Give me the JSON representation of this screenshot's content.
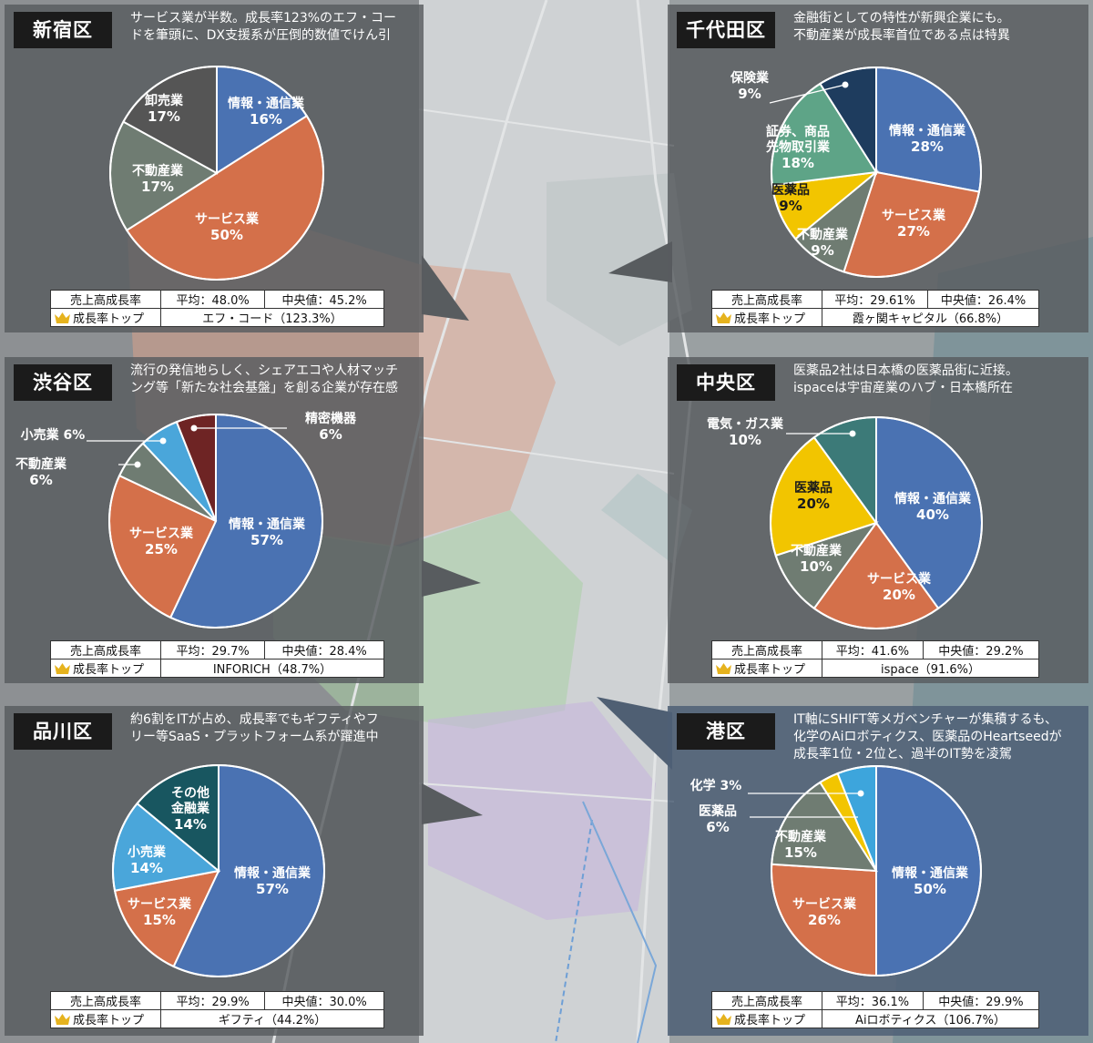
{
  "colors": {
    "it": "#4a72b2",
    "service": "#d4704a",
    "realestate": "#6f7c72",
    "wholesale": "#555555",
    "insurance": "#1e3c5e",
    "securities": "#5ea487",
    "pharma": "#f2c500",
    "retail": "#4aa6da",
    "precision": "#6e2424",
    "electric": "#3c7a78",
    "otherfin": "#185660",
    "chemistry": "#f2c500",
    "minato_pharma": "#3da5dc"
  },
  "labels": {
    "stat_label": "売上高成長率",
    "top_label": "成長率トップ"
  },
  "panels": [
    {
      "key": "shinjuku",
      "ward": "新宿区",
      "desc": [
        "サービス業が半数。成長率123%のエフ・コー",
        "ドを筆頭に、DX支援系が圧倒的数値でけん引"
      ],
      "avg": "平均：48.0%",
      "median": "中央値：45.2%",
      "top": "エフ・コード（123.3%）",
      "slices": [
        {
          "name": "情報・通信業",
          "value": 16,
          "pct": "16%",
          "color": "it"
        },
        {
          "name": "サービス業",
          "value": 50,
          "pct": "50%",
          "color": "service"
        },
        {
          "name": "不動産業",
          "value": 17,
          "pct": "17%",
          "color": "realestate"
        },
        {
          "name": "卸売業",
          "value": 17,
          "pct": "17%",
          "color": "wholesale"
        }
      ]
    },
    {
      "key": "chiyoda",
      "ward": "千代田区",
      "desc": [
        "金融街としての特性が新興企業にも。",
        "不動産業が成長率首位である点は特異"
      ],
      "avg": "平均：29.61%",
      "median": "中央値：26.4%",
      "top": "霞ヶ関キャピタル（66.8%）",
      "slices": [
        {
          "name": "情報・通信業",
          "value": 28,
          "pct": "28%",
          "color": "it"
        },
        {
          "name": "サービス業",
          "value": 27,
          "pct": "27%",
          "color": "service"
        },
        {
          "name": "不動産業",
          "value": 9,
          "pct": "9%",
          "color": "realestate"
        },
        {
          "name": "医薬品",
          "value": 9,
          "pct": "9%",
          "color": "pharma"
        },
        {
          "name": "証券、商品先物取引業",
          "value": 18,
          "pct": "18%",
          "color": "securities"
        },
        {
          "name": "保険業",
          "value": 9,
          "pct": "9%",
          "color": "insurance"
        }
      ]
    },
    {
      "key": "shibuya",
      "ward": "渋谷区",
      "desc": [
        "流行の発信地らしく、シェアエコや人材マッチ",
        "ング等「新たな社会基盤」を創る企業が存在感"
      ],
      "avg": "平均：29.7%",
      "median": "中央値：28.4%",
      "top": "INFORICH（48.7%）",
      "slices": [
        {
          "name": "情報・通信業",
          "value": 57,
          "pct": "57%",
          "color": "it"
        },
        {
          "name": "サービス業",
          "value": 25,
          "pct": "25%",
          "color": "service"
        },
        {
          "name": "不動産業",
          "value": 6,
          "pct": "6%",
          "color": "realestate"
        },
        {
          "name": "小売業",
          "value": 6,
          "pct": "6%",
          "color": "retail"
        },
        {
          "name": "精密機器",
          "value": 6,
          "pct": "6%",
          "color": "precision"
        }
      ]
    },
    {
      "key": "chuo",
      "ward": "中央区",
      "desc": [
        "医薬品2社は日本橋の医薬品街に近接。",
        "ispaceは宇宙産業のハブ・日本橋所在"
      ],
      "avg": "平均：41.6%",
      "median": "中央値：29.2%",
      "top": "ispace（91.6%）",
      "slices": [
        {
          "name": "情報・通信業",
          "value": 40,
          "pct": "40%",
          "color": "it"
        },
        {
          "name": "サービス業",
          "value": 20,
          "pct": "20%",
          "color": "service"
        },
        {
          "name": "不動産業",
          "value": 10,
          "pct": "10%",
          "color": "realestate"
        },
        {
          "name": "医薬品",
          "value": 20,
          "pct": "20%",
          "color": "pharma"
        },
        {
          "name": "電気・ガス業",
          "value": 10,
          "pct": "10%",
          "color": "electric"
        }
      ]
    },
    {
      "key": "shinagawa",
      "ward": "品川区",
      "desc": [
        "約6割をITが占め、成長率でもギフティやフ",
        "リー等SaaS・プラットフォーム系が躍進中"
      ],
      "avg": "平均：29.9%",
      "median": "中央値：30.0%",
      "top": "ギフティ（44.2%）",
      "slices": [
        {
          "name": "情報・通信業",
          "value": 57,
          "pct": "57%",
          "color": "it"
        },
        {
          "name": "サービス業",
          "value": 15,
          "pct": "15%",
          "color": "service"
        },
        {
          "name": "小売業",
          "value": 14,
          "pct": "14%",
          "color": "retail"
        },
        {
          "name": "その他金融業",
          "value": 14,
          "pct": "14%",
          "color": "otherfin"
        }
      ]
    },
    {
      "key": "minato",
      "ward": "港区",
      "desc": [
        "IT軸にSHIFT等メガベンチャーが集積するも、",
        "化学のAiロボティクス、医薬品のHeartseedが",
        "成長率1位・2位と、過半のIT勢を凌駕"
      ],
      "avg": "平均：36.1%",
      "median": "中央値：29.9%",
      "top": "Aiロボティクス（106.7%）",
      "slices": [
        {
          "name": "情報・通信業",
          "value": 50,
          "pct": "50%",
          "color": "it"
        },
        {
          "name": "サービス業",
          "value": 26,
          "pct": "26%",
          "color": "service"
        },
        {
          "name": "不動産業",
          "value": 15,
          "pct": "15%",
          "color": "realestate"
        },
        {
          "name": "化学",
          "value": 3,
          "pct": "3%",
          "color": "chemistry"
        },
        {
          "name": "医薬品",
          "value": 6,
          "pct": "6%",
          "color": "minato_pharma"
        }
      ]
    }
  ],
  "chart_data": [
    {
      "type": "pie",
      "title": "新宿区",
      "categories": [
        "情報・通信業",
        "サービス業",
        "不動産業",
        "卸売業"
      ],
      "values": [
        16,
        50,
        17,
        17
      ]
    },
    {
      "type": "pie",
      "title": "千代田区",
      "categories": [
        "情報・通信業",
        "サービス業",
        "不動産業",
        "医薬品",
        "証券、商品先物取引業",
        "保険業"
      ],
      "values": [
        28,
        27,
        9,
        9,
        18,
        9
      ]
    },
    {
      "type": "pie",
      "title": "渋谷区",
      "categories": [
        "情報・通信業",
        "サービス業",
        "不動産業",
        "小売業",
        "精密機器"
      ],
      "values": [
        57,
        25,
        6,
        6,
        6
      ]
    },
    {
      "type": "pie",
      "title": "中央区",
      "categories": [
        "情報・通信業",
        "サービス業",
        "不動産業",
        "医薬品",
        "電気・ガス業"
      ],
      "values": [
        40,
        20,
        10,
        20,
        10
      ]
    },
    {
      "type": "pie",
      "title": "品川区",
      "categories": [
        "情報・通信業",
        "サービス業",
        "小売業",
        "その他金融業"
      ],
      "values": [
        57,
        15,
        14,
        14
      ]
    },
    {
      "type": "pie",
      "title": "港区",
      "categories": [
        "情報・通信業",
        "サービス業",
        "不動産業",
        "化学",
        "医薬品"
      ],
      "values": [
        50,
        26,
        15,
        3,
        6
      ]
    }
  ]
}
